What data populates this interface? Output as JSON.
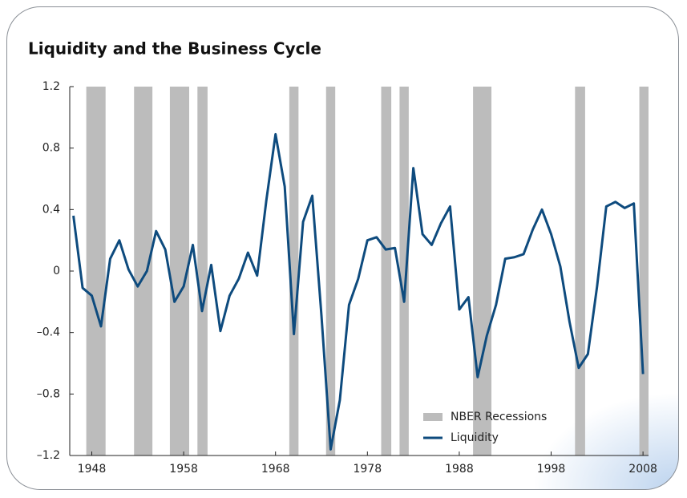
{
  "chart_data": {
    "type": "line",
    "title": "Liquidity and the Business Cycle",
    "x": [
      1946,
      1947,
      1948,
      1949,
      1950,
      1951,
      1952,
      1953,
      1954,
      1955,
      1956,
      1957,
      1958,
      1959,
      1960,
      1961,
      1962,
      1963,
      1964,
      1965,
      1966,
      1967,
      1968,
      1969,
      1970,
      1971,
      1972,
      1973,
      1974,
      1975,
      1976,
      1977,
      1978,
      1979,
      1980,
      1981,
      1982,
      1983,
      1984,
      1985,
      1986,
      1987,
      1988,
      1989,
      1990,
      1991,
      1992,
      1993,
      1994,
      1995,
      1996,
      1997,
      1998,
      1999,
      2000,
      2001,
      2002,
      2003,
      2004,
      2005,
      2006,
      2007,
      2008
    ],
    "series": [
      {
        "name": "Liquidity",
        "color": "#0e4b7e",
        "values": [
          0.36,
          -0.11,
          -0.16,
          -0.36,
          0.08,
          0.2,
          0.01,
          -0.1,
          0.0,
          0.26,
          0.14,
          -0.2,
          -0.1,
          0.17,
          -0.26,
          0.04,
          -0.39,
          -0.16,
          -0.05,
          0.12,
          -0.03,
          0.46,
          0.89,
          0.55,
          -0.41,
          0.32,
          0.49,
          -0.29,
          -1.16,
          -0.84,
          -0.22,
          -0.05,
          0.2,
          0.22,
          0.14,
          0.15,
          -0.2,
          0.67,
          0.24,
          0.17,
          0.31,
          0.42,
          -0.25,
          -0.17,
          -0.69,
          -0.42,
          -0.22,
          0.08,
          0.09,
          0.11,
          0.27,
          0.4,
          0.24,
          0.03,
          -0.33,
          -0.63,
          -0.54,
          -0.1,
          0.42,
          0.45,
          0.41,
          0.44,
          -0.67
        ]
      }
    ],
    "recessions": {
      "name": "NBER Recessions",
      "color": "#bcbcbc",
      "spans": [
        [
          1947.4,
          1949.5
        ],
        [
          1952.6,
          1954.6
        ],
        [
          1956.5,
          1958.6
        ],
        [
          1959.5,
          1960.6
        ],
        [
          1969.5,
          1970.5
        ],
        [
          1973.5,
          1974.5
        ],
        [
          1979.5,
          1980.6
        ],
        [
          1981.5,
          1982.5
        ],
        [
          1989.5,
          1991.5
        ],
        [
          2000.6,
          2001.7
        ],
        [
          2007.6,
          2008.6
        ]
      ]
    },
    "xlim": [
      1945.6,
      2008.6
    ],
    "xticks": [
      1948,
      1958,
      1968,
      1978,
      1988,
      1998,
      2008
    ],
    "ylim": [
      -1.2,
      1.2
    ],
    "yticks": [
      {
        "value": -1.2,
        "label": "–1.2"
      },
      {
        "value": -0.8,
        "label": "–0.8"
      },
      {
        "value": -0.4,
        "label": "–0.4"
      },
      0,
      0.4,
      0.8,
      1.2
    ],
    "legend": "lower right"
  }
}
